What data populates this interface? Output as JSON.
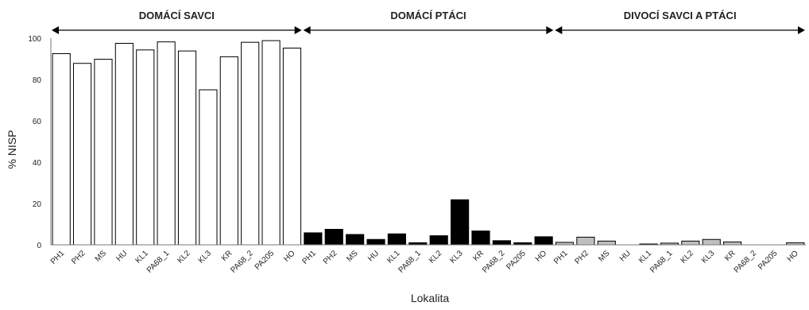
{
  "chart_data": {
    "type": "bar",
    "title": "",
    "xlabel": "Lokalita",
    "ylabel": "% NISP",
    "ylim": [
      0,
      100
    ],
    "yticks": [
      0,
      20,
      40,
      60,
      80,
      100
    ],
    "grid": false,
    "legend": "none",
    "categories": [
      "PH1",
      "PH2",
      "MS",
      "HU",
      "KL1",
      "PA68_1",
      "KL2",
      "KL3",
      "KR",
      "PA68_2",
      "PA205",
      "HO"
    ],
    "groups": [
      {
        "name": "DOMÁCÍ SAVCI",
        "color": "#ffffff",
        "values": [
          92.5,
          87.8,
          89.8,
          97.5,
          94.3,
          98.2,
          93.8,
          75.0,
          91.0,
          98.0,
          98.8,
          95.2
        ]
      },
      {
        "name": "DOMÁCÍ PTÁCI",
        "color": "#000000",
        "values": [
          5.8,
          7.5,
          5.0,
          2.6,
          5.3,
          1.0,
          4.4,
          21.8,
          6.7,
          2.0,
          1.0,
          3.9
        ]
      },
      {
        "name": "DIVOCÍ SAVCI A PTÁCI",
        "color": "#bfbfbf",
        "values": [
          1.2,
          3.7,
          1.8,
          0.0,
          0.4,
          0.8,
          1.8,
          2.6,
          1.4,
          0.0,
          0.0,
          1.0
        ]
      }
    ]
  }
}
